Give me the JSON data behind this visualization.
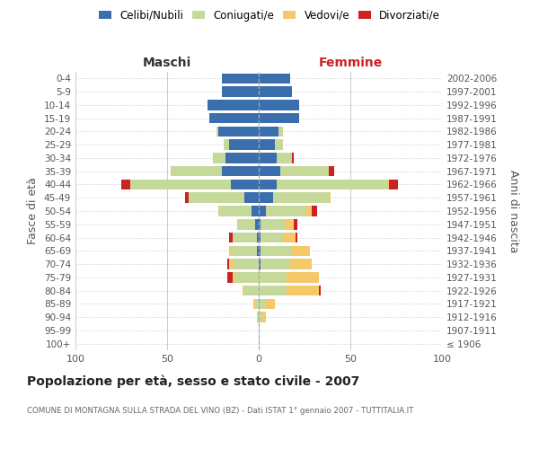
{
  "age_groups": [
    "100+",
    "95-99",
    "90-94",
    "85-89",
    "80-84",
    "75-79",
    "70-74",
    "65-69",
    "60-64",
    "55-59",
    "50-54",
    "45-49",
    "40-44",
    "35-39",
    "30-34",
    "25-29",
    "20-24",
    "15-19",
    "10-14",
    "5-9",
    "0-4"
  ],
  "birth_years": [
    "≤ 1906",
    "1907-1911",
    "1912-1916",
    "1917-1921",
    "1922-1926",
    "1927-1931",
    "1932-1936",
    "1937-1941",
    "1942-1946",
    "1947-1951",
    "1952-1956",
    "1957-1961",
    "1962-1966",
    "1967-1971",
    "1972-1976",
    "1977-1981",
    "1982-1986",
    "1987-1991",
    "1992-1996",
    "1997-2001",
    "2002-2006"
  ],
  "males": {
    "celibi": [
      0,
      0,
      0,
      0,
      0,
      0,
      0,
      1,
      1,
      2,
      4,
      8,
      15,
      20,
      18,
      16,
      22,
      27,
      28,
      20,
      20
    ],
    "coniugati": [
      0,
      0,
      1,
      2,
      8,
      13,
      14,
      14,
      13,
      10,
      18,
      30,
      55,
      28,
      7,
      3,
      1,
      0,
      0,
      0,
      0
    ],
    "vedovi": [
      0,
      0,
      0,
      1,
      1,
      1,
      2,
      1,
      0,
      0,
      0,
      0,
      0,
      0,
      0,
      0,
      0,
      0,
      0,
      0,
      0
    ],
    "divorziati": [
      0,
      0,
      0,
      0,
      0,
      3,
      1,
      0,
      2,
      0,
      0,
      2,
      5,
      0,
      0,
      0,
      0,
      0,
      0,
      0,
      0
    ]
  },
  "females": {
    "nubili": [
      0,
      0,
      0,
      0,
      0,
      0,
      1,
      1,
      1,
      1,
      4,
      8,
      10,
      12,
      10,
      9,
      11,
      22,
      22,
      18,
      17
    ],
    "coniugate": [
      0,
      0,
      2,
      4,
      15,
      15,
      16,
      17,
      12,
      13,
      22,
      30,
      60,
      26,
      8,
      4,
      2,
      0,
      0,
      0,
      0
    ],
    "vedove": [
      0,
      0,
      2,
      5,
      18,
      18,
      12,
      10,
      7,
      5,
      3,
      1,
      1,
      0,
      0,
      0,
      0,
      0,
      0,
      0,
      0
    ],
    "divorziate": [
      0,
      0,
      0,
      0,
      1,
      0,
      0,
      0,
      1,
      2,
      3,
      0,
      5,
      3,
      1,
      0,
      0,
      0,
      0,
      0,
      0
    ]
  },
  "colors": {
    "celibi": "#3a6eac",
    "coniugati": "#c5d99a",
    "vedovi": "#f5c96a",
    "divorziati": "#cc2222"
  },
  "xlim": 100,
  "title": "Popolazione per età, sesso e stato civile - 2007",
  "subtitle": "COMUNE DI MONTAGNA SULLA STRADA DEL VINO (BZ) - Dati ISTAT 1° gennaio 2007 - TUTTITALIA.IT",
  "ylabel_left": "Fasce di età",
  "ylabel_right": "Anni di nascita",
  "xlabel_left": "Maschi",
  "xlabel_right": "Femmine",
  "legend_labels": [
    "Celibi/Nubili",
    "Coniugati/e",
    "Vedovi/e",
    "Divorziati/e"
  ],
  "bg_color": "#ffffff",
  "grid_color": "#cccccc"
}
